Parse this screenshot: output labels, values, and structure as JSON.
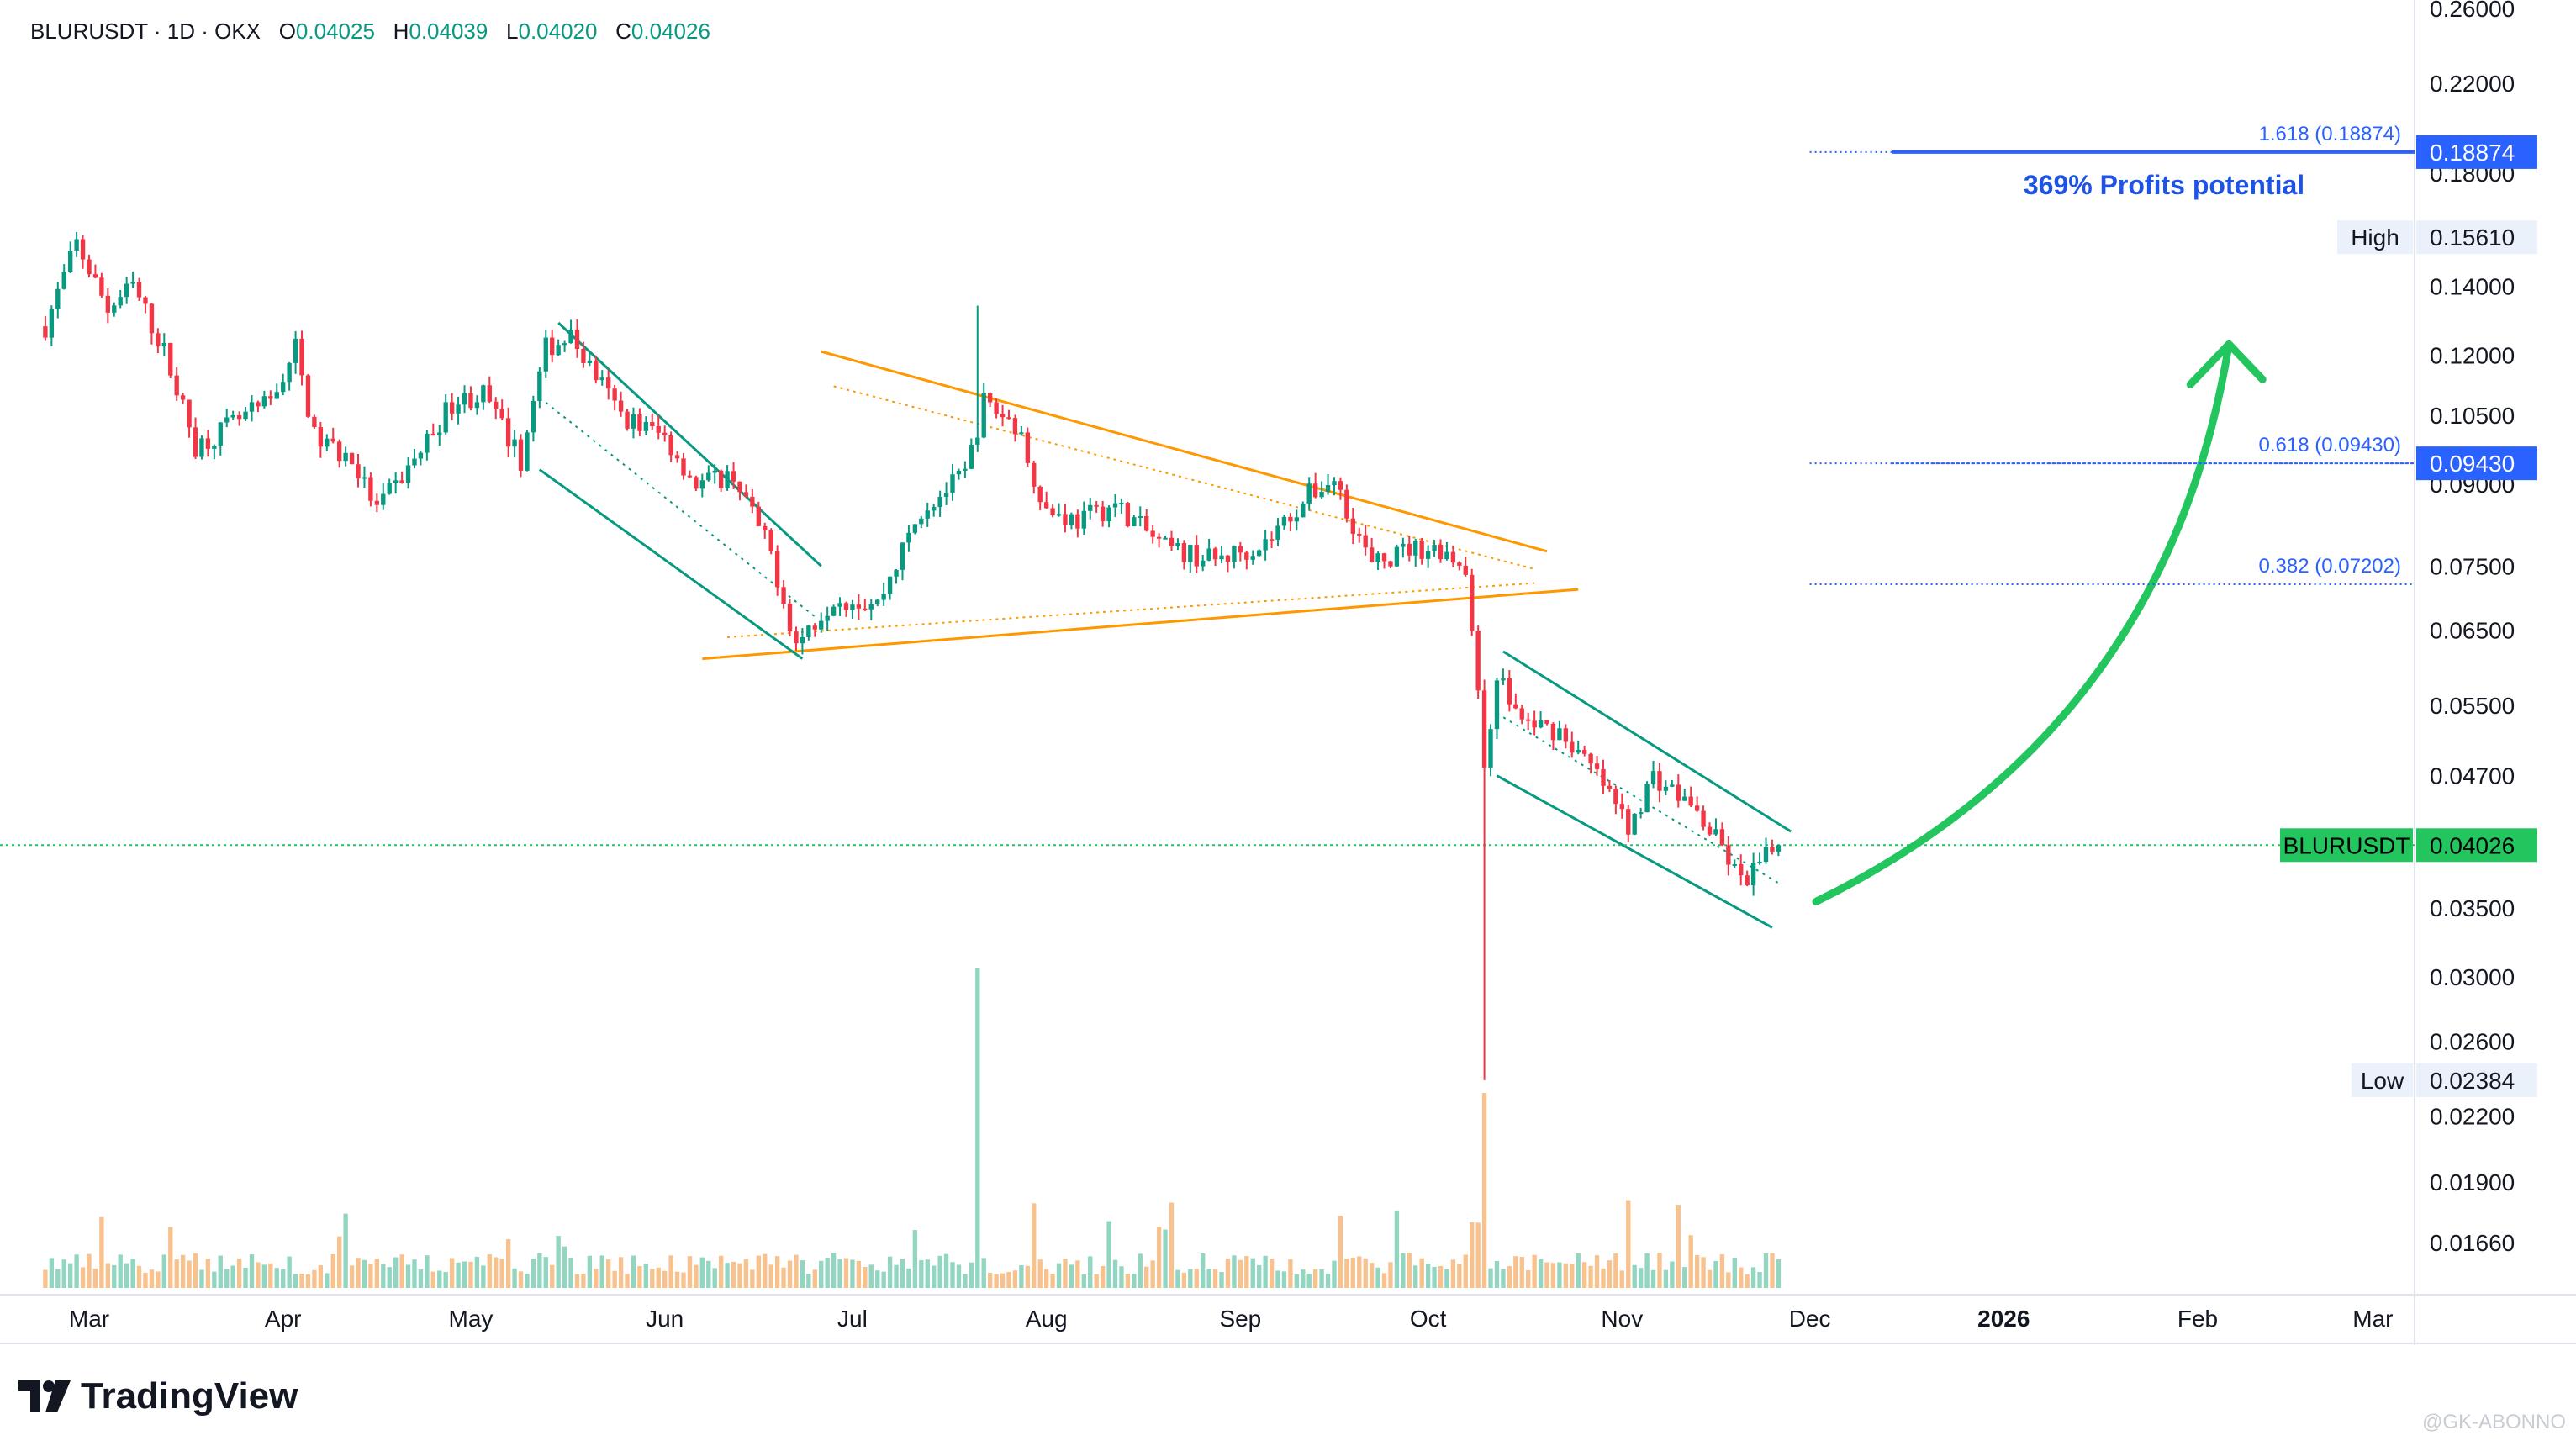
{
  "header": {
    "symbol": "BLURUSDT · 1D · OKX",
    "open_label": "O",
    "open": "0.04025",
    "high_label": "H",
    "high": "0.04039",
    "low_label": "L",
    "low": "0.04020",
    "close_label": "C",
    "close": "0.04026"
  },
  "brand": {
    "name": "TradingView"
  },
  "watermark": "@GK-ABONNO",
  "colors": {
    "up": "#089981",
    "down": "#f23645",
    "fib": "#2962ff",
    "pattern": "#ff9800",
    "channel": "#089981",
    "arrow": "#22c55e",
    "price": "#22c55e"
  },
  "chart_data": {
    "type": "candlestick",
    "symbol": "BLURUSDT",
    "interval": "1D",
    "exchange": "OKX",
    "y_scale": "log",
    "y_ticks": [
      "0.26000",
      "0.22000",
      "0.18000",
      "0.14000",
      "0.12000",
      "0.10500",
      "0.09000",
      "0.07500",
      "0.06500",
      "0.05500",
      "0.04700",
      "0.03500",
      "0.03000",
      "0.02600",
      "0.02200",
      "0.01900",
      "0.01660"
    ],
    "x_ticks": [
      "Mar",
      "Apr",
      "May",
      "Jun",
      "Jul",
      "Aug",
      "Sep",
      "Oct",
      "Nov",
      "Dec",
      "2026",
      "Feb",
      "Mar"
    ],
    "price_path": [
      [
        "2025-02-22",
        0.128
      ],
      [
        "2025-02-27",
        0.154
      ],
      [
        "2025-03-04",
        0.133
      ],
      [
        "2025-03-08",
        0.14
      ],
      [
        "2025-03-13",
        0.121
      ],
      [
        "2025-03-18",
        0.098
      ],
      [
        "2025-03-24",
        0.103
      ],
      [
        "2025-03-30",
        0.108
      ],
      [
        "2025-04-03",
        0.122
      ],
      [
        "2025-04-06",
        0.1
      ],
      [
        "2025-04-12",
        0.095
      ],
      [
        "2025-04-16",
        0.085
      ],
      [
        "2025-04-22",
        0.095
      ],
      [
        "2025-04-28",
        0.108
      ],
      [
        "2025-05-03",
        0.11
      ],
      [
        "2025-05-09",
        0.095
      ],
      [
        "2025-05-13",
        0.122
      ],
      [
        "2025-05-17",
        0.125
      ],
      [
        "2025-05-25",
        0.105
      ],
      [
        "2025-06-01",
        0.1
      ],
      [
        "2025-06-06",
        0.09
      ],
      [
        "2025-06-12",
        0.092
      ],
      [
        "2025-06-18",
        0.077
      ],
      [
        "2025-06-22",
        0.063
      ],
      [
        "2025-06-28",
        0.07
      ],
      [
        "2025-07-05",
        0.069
      ],
      [
        "2025-07-12",
        0.085
      ],
      [
        "2025-07-19",
        0.092
      ],
      [
        "2025-07-22",
        0.108
      ],
      [
        "2025-07-27",
        0.103
      ],
      [
        "2025-08-01",
        0.085
      ],
      [
        "2025-08-06",
        0.083
      ],
      [
        "2025-08-12",
        0.086
      ],
      [
        "2025-08-20",
        0.078
      ],
      [
        "2025-08-28",
        0.076
      ],
      [
        "2025-09-05",
        0.079
      ],
      [
        "2025-09-12",
        0.088
      ],
      [
        "2025-09-16",
        0.091
      ],
      [
        "2025-09-22",
        0.075
      ],
      [
        "2025-09-28",
        0.078
      ],
      [
        "2025-10-03",
        0.078
      ],
      [
        "2025-10-07",
        0.075
      ],
      [
        "2025-10-10",
        0.048
      ],
      [
        "2025-10-12",
        0.059
      ],
      [
        "2025-10-16",
        0.053
      ],
      [
        "2025-10-22",
        0.052
      ],
      [
        "2025-10-28",
        0.047
      ],
      [
        "2025-11-02",
        0.042
      ],
      [
        "2025-11-06",
        0.047
      ],
      [
        "2025-11-12",
        0.044
      ],
      [
        "2025-11-17",
        0.04
      ],
      [
        "2025-11-20",
        0.037
      ],
      [
        "2025-11-26",
        0.0403
      ]
    ],
    "extreme_wicks": [
      {
        "date": "2025-07-21",
        "high": 0.134
      },
      {
        "date": "2025-10-10",
        "low": 0.02384
      }
    ],
    "volume_spikes": [
      "2025-07-21",
      "2025-10-10"
    ],
    "fib_levels": [
      {
        "label": "1.618 (0.18874)",
        "value": 0.18874,
        "axis_label": "0.18874",
        "start": "2025-12-01"
      },
      {
        "label": "0.618 (0.09430)",
        "value": 0.0943,
        "axis_label": "0.09430",
        "start": "2025-12-01"
      },
      {
        "label": "0.382 (0.07202)",
        "value": 0.07202,
        "start": "2025-12-01"
      }
    ],
    "high_marker": {
      "label": "High",
      "value": "0.15610"
    },
    "low_marker": {
      "label": "Low",
      "value": "0.02384"
    },
    "last_price": {
      "label": "BLURUSDT",
      "value": "0.04026",
      "v": 0.04026
    },
    "annotation": "369% Profits potential",
    "triangle": {
      "upper": [
        [
          "2025-06-26",
          0.121
        ],
        [
          "2025-10-20",
          0.0775
        ]
      ],
      "lower": [
        [
          "2025-06-07",
          0.061
        ],
        [
          "2025-10-25",
          0.0712
        ]
      ],
      "upper_inner": [
        [
          "2025-06-28",
          0.112
        ],
        [
          "2025-10-18",
          0.0745
        ]
      ],
      "lower_inner": [
        [
          "2025-06-11",
          0.064
        ],
        [
          "2025-10-18",
          0.0722
        ]
      ]
    },
    "channels": [
      {
        "upper": [
          [
            "2025-05-15",
            0.129
          ],
          [
            "2025-06-26",
            0.075
          ]
        ],
        "lower": [
          [
            "2025-05-12",
            0.093
          ],
          [
            "2025-06-23",
            0.061
          ]
        ],
        "mid": [
          [
            "2025-05-13",
            0.108
          ],
          [
            "2025-06-25",
            0.067
          ]
        ]
      },
      {
        "upper": [
          [
            "2025-10-13",
            0.062
          ],
          [
            "2025-11-28",
            0.0415
          ]
        ],
        "lower": [
          [
            "2025-10-12",
            0.047
          ],
          [
            "2025-11-25",
            0.0335
          ]
        ],
        "mid": [
          [
            "2025-10-12",
            0.054
          ],
          [
            "2025-11-26",
            0.037
          ]
        ]
      }
    ],
    "projection_arrow": {
      "from": [
        "2025-12-02",
        0.0355
      ],
      "ctrl": [
        "2026-01-27",
        0.052
      ],
      "to": [
        "2026-02-06",
        0.123
      ]
    }
  }
}
